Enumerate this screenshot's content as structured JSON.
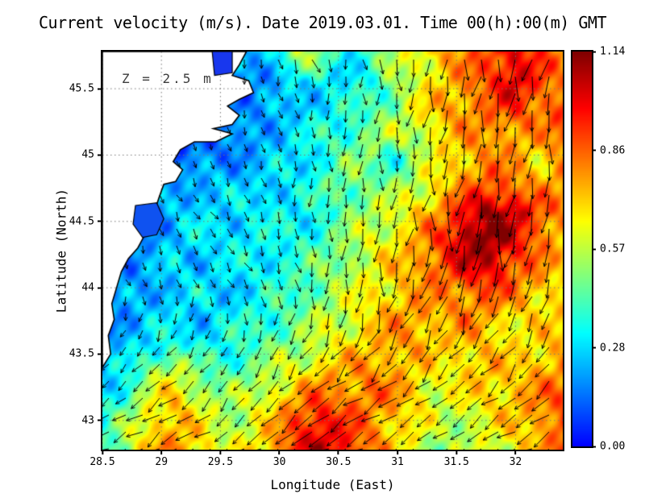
{
  "chart_data": {
    "type": "heatmap",
    "title": "Current velocity (m/s). Date 2019.03.01. Time 00(h):00(m) GMT",
    "annotation": "Z = 2.5 m",
    "xlabel": "Longitude (East)",
    "ylabel": "Latitude (North)",
    "xlim": [
      28.5,
      32.4
    ],
    "ylim": [
      42.78,
      45.78
    ],
    "xticks": [
      28.5,
      29,
      29.5,
      30,
      30.5,
      31,
      31.5,
      32
    ],
    "yticks": [
      43,
      43.5,
      44,
      44.5,
      45,
      45.5
    ],
    "grid": true,
    "colormap": "jet",
    "arrow_color": "#000000",
    "grid_color": "#777777",
    "colorbar": {
      "min": 0,
      "max": 1.14,
      "ticks": [
        {
          "value": 1.14,
          "label": "1.14"
        },
        {
          "value": 0.855,
          "label": "0.86"
        },
        {
          "value": 0.57,
          "label": "0.57"
        },
        {
          "value": 0.285,
          "label": "0.28"
        },
        {
          "value": 0.0,
          "label": "0.00"
        }
      ]
    },
    "speed_grid": {
      "lon_range": [
        28.5,
        32.4
      ],
      "lat_range": [
        45.75,
        42.8
      ],
      "values": [
        [
          0.1,
          0.1,
          0.1,
          0.1,
          0.1,
          0.12,
          0.2,
          0.3,
          0.55,
          0.5,
          0.3,
          0.4,
          0.55,
          0.65,
          0.75,
          0.8,
          0.9,
          1.0,
          0.9,
          0.8
        ],
        [
          0.1,
          0.1,
          0.1,
          0.1,
          0.1,
          0.12,
          0.15,
          0.2,
          0.3,
          0.3,
          0.3,
          0.35,
          0.5,
          0.6,
          0.7,
          0.8,
          0.9,
          1.05,
          0.9,
          0.8
        ],
        [
          0.1,
          0.1,
          0.1,
          0.1,
          0.12,
          0.15,
          0.18,
          0.2,
          0.25,
          0.3,
          0.35,
          0.4,
          0.5,
          0.65,
          0.75,
          0.8,
          0.85,
          0.9,
          0.85,
          0.9
        ],
        [
          0.1,
          0.1,
          0.1,
          0.1,
          0.12,
          0.12,
          0.18,
          0.25,
          0.3,
          0.35,
          0.4,
          0.5,
          0.55,
          0.6,
          0.7,
          0.75,
          0.8,
          0.8,
          0.75,
          0.85
        ],
        [
          0.1,
          0.1,
          0.1,
          0.12,
          0.15,
          0.18,
          0.2,
          0.25,
          0.3,
          0.35,
          0.45,
          0.5,
          0.35,
          0.5,
          0.65,
          0.75,
          0.8,
          0.75,
          0.7,
          0.8
        ],
        [
          0.1,
          0.1,
          0.12,
          0.2,
          0.25,
          0.28,
          0.25,
          0.3,
          0.3,
          0.4,
          0.5,
          0.45,
          0.5,
          0.6,
          0.7,
          0.8,
          0.9,
          0.85,
          0.75,
          0.8
        ],
        [
          0.1,
          0.12,
          0.15,
          0.25,
          0.3,
          0.25,
          0.3,
          0.35,
          0.3,
          0.35,
          0.45,
          0.55,
          0.6,
          0.7,
          0.8,
          1.0,
          1.1,
          1.05,
          0.9,
          0.8
        ],
        [
          0.1,
          0.12,
          0.2,
          0.25,
          0.3,
          0.3,
          0.35,
          0.3,
          0.35,
          0.4,
          0.5,
          0.6,
          0.65,
          0.75,
          0.9,
          1.1,
          1.14,
          1.0,
          0.85,
          0.75
        ],
        [
          0.12,
          0.15,
          0.2,
          0.3,
          0.25,
          0.3,
          0.3,
          0.35,
          0.4,
          0.45,
          0.55,
          0.6,
          0.7,
          0.8,
          0.9,
          1.0,
          1.05,
          0.9,
          0.8,
          0.7
        ],
        [
          0.15,
          0.2,
          0.25,
          0.25,
          0.3,
          0.25,
          0.3,
          0.35,
          0.4,
          0.5,
          0.55,
          0.65,
          0.7,
          0.75,
          0.8,
          0.85,
          0.9,
          0.8,
          0.75,
          0.7
        ],
        [
          0.2,
          0.2,
          0.25,
          0.3,
          0.25,
          0.3,
          0.35,
          0.4,
          0.45,
          0.55,
          0.6,
          0.7,
          0.75,
          0.8,
          0.75,
          0.8,
          0.75,
          0.7,
          0.65,
          0.7
        ],
        [
          0.2,
          0.25,
          0.3,
          0.35,
          0.3,
          0.35,
          0.4,
          0.45,
          0.5,
          0.6,
          0.65,
          0.7,
          0.8,
          0.75,
          0.7,
          0.75,
          0.7,
          0.65,
          0.7,
          0.75
        ],
        [
          0.25,
          0.3,
          0.5,
          0.6,
          0.45,
          0.4,
          0.45,
          0.55,
          0.6,
          0.7,
          0.75,
          0.8,
          0.75,
          0.7,
          0.65,
          0.7,
          0.75,
          0.7,
          0.75,
          0.8
        ],
        [
          0.3,
          0.4,
          0.6,
          0.7,
          0.6,
          0.5,
          0.55,
          0.65,
          0.75,
          0.85,
          0.8,
          0.85,
          0.8,
          0.7,
          0.6,
          0.65,
          0.7,
          0.75,
          0.8,
          0.85
        ],
        [
          0.35,
          0.5,
          0.7,
          0.75,
          0.65,
          0.55,
          0.6,
          0.7,
          0.9,
          1.0,
          0.9,
          0.8,
          0.75,
          0.65,
          0.55,
          0.6,
          0.65,
          0.7,
          0.8,
          0.9
        ],
        [
          0.4,
          0.55,
          0.75,
          0.8,
          0.7,
          0.6,
          0.65,
          0.75,
          0.95,
          1.05,
          0.95,
          0.85,
          0.7,
          0.6,
          0.5,
          0.55,
          0.6,
          0.65,
          0.75,
          0.85
        ]
      ]
    },
    "vector_grid": {
      "lon_range": [
        28.5,
        32.4
      ],
      "lat_range": [
        45.75,
        42.8
      ],
      "u": [
        [
          0.0,
          0.0,
          0.0,
          0.05,
          0.1,
          0.05,
          0.0,
          -0.05,
          -0.1,
          -0.1
        ],
        [
          0.0,
          0.0,
          0.05,
          0.1,
          0.05,
          0.0,
          -0.05,
          -0.1,
          -0.15,
          -0.1
        ],
        [
          0.05,
          0.1,
          0.1,
          0.1,
          0.0,
          0.0,
          -0.1,
          -0.1,
          -0.1,
          -0.05
        ],
        [
          0.1,
          0.15,
          0.2,
          0.1,
          0.05,
          0.0,
          -0.05,
          -0.1,
          -0.1,
          0.0
        ],
        [
          0.1,
          0.1,
          0.15,
          0.2,
          0.1,
          0.0,
          -0.1,
          -0.2,
          -0.15,
          -0.1
        ],
        [
          -0.1,
          -0.15,
          -0.2,
          -0.1,
          -0.2,
          -0.3,
          -0.3,
          -0.3,
          -0.3,
          -0.3
        ],
        [
          -0.2,
          -0.3,
          -0.4,
          -0.4,
          -0.5,
          -0.5,
          -0.45,
          -0.4,
          -0.4,
          -0.45
        ],
        [
          -0.3,
          -0.45,
          -0.6,
          -0.7,
          -0.7,
          -0.6,
          -0.5,
          -0.45,
          -0.5,
          -0.55
        ]
      ],
      "v": [
        [
          -0.1,
          -0.1,
          -0.2,
          -0.3,
          -0.3,
          -0.4,
          -0.6,
          -0.8,
          -0.9,
          -0.8
        ],
        [
          -0.1,
          -0.15,
          -0.2,
          -0.3,
          -0.4,
          -0.5,
          -0.7,
          -0.8,
          -0.8,
          -0.8
        ],
        [
          -0.2,
          -0.25,
          -0.3,
          -0.3,
          -0.4,
          -0.5,
          -0.7,
          -0.9,
          -0.8,
          -0.7
        ],
        [
          -0.2,
          -0.3,
          -0.3,
          -0.35,
          -0.4,
          -0.5,
          -0.8,
          -1.0,
          -0.9,
          -0.7
        ],
        [
          -0.25,
          -0.3,
          -0.3,
          -0.4,
          -0.5,
          -0.55,
          -0.7,
          -0.8,
          -0.7,
          -0.6
        ],
        [
          -0.2,
          -0.3,
          -0.35,
          -0.4,
          -0.5,
          -0.5,
          -0.5,
          -0.5,
          -0.5,
          -0.4
        ],
        [
          -0.2,
          -0.3,
          -0.4,
          -0.5,
          -0.5,
          -0.4,
          -0.35,
          -0.3,
          -0.35,
          -0.4
        ],
        [
          -0.15,
          -0.25,
          -0.4,
          -0.45,
          -0.4,
          -0.35,
          -0.3,
          -0.25,
          -0.3,
          -0.35
        ]
      ]
    },
    "land": {
      "fill": "#ffffff",
      "stroke": "#000000",
      "coast_polygon": [
        [
          28.5,
          45.78
        ],
        [
          29.72,
          45.78
        ],
        [
          29.66,
          45.68
        ],
        [
          29.6,
          45.6
        ],
        [
          29.74,
          45.56
        ],
        [
          29.78,
          45.47
        ],
        [
          29.66,
          45.42
        ],
        [
          29.56,
          45.37
        ],
        [
          29.66,
          45.3
        ],
        [
          29.6,
          45.23
        ],
        [
          29.44,
          45.2
        ],
        [
          29.6,
          45.16
        ],
        [
          29.46,
          45.1
        ],
        [
          29.28,
          45.1
        ],
        [
          29.16,
          45.04
        ],
        [
          29.1,
          44.95
        ],
        [
          29.18,
          44.89
        ],
        [
          29.12,
          44.8
        ],
        [
          29.02,
          44.78
        ],
        [
          28.98,
          44.68
        ],
        [
          28.95,
          44.6
        ],
        [
          29.0,
          44.52
        ],
        [
          28.94,
          44.45
        ],
        [
          28.86,
          44.4
        ],
        [
          28.8,
          44.3
        ],
        [
          28.72,
          44.22
        ],
        [
          28.66,
          44.12
        ],
        [
          28.62,
          44.0
        ],
        [
          28.58,
          43.88
        ],
        [
          28.6,
          43.76
        ],
        [
          28.55,
          43.64
        ],
        [
          28.57,
          43.5
        ],
        [
          28.5,
          43.4
        ]
      ],
      "lakes": [
        {
          "name": "delta-lagoon",
          "fill": "#1837ee",
          "points": [
            [
              29.43,
              45.78
            ],
            [
              29.6,
              45.78
            ],
            [
              29.6,
              45.62
            ],
            [
              29.45,
              45.6
            ]
          ]
        },
        {
          "name": "razim-lagoon",
          "fill": "#0f52f0",
          "points": [
            [
              28.78,
              44.62
            ],
            [
              28.96,
              44.64
            ],
            [
              29.02,
              44.52
            ],
            [
              28.96,
              44.4
            ],
            [
              28.84,
              44.38
            ],
            [
              28.76,
              44.48
            ]
          ]
        }
      ]
    }
  }
}
